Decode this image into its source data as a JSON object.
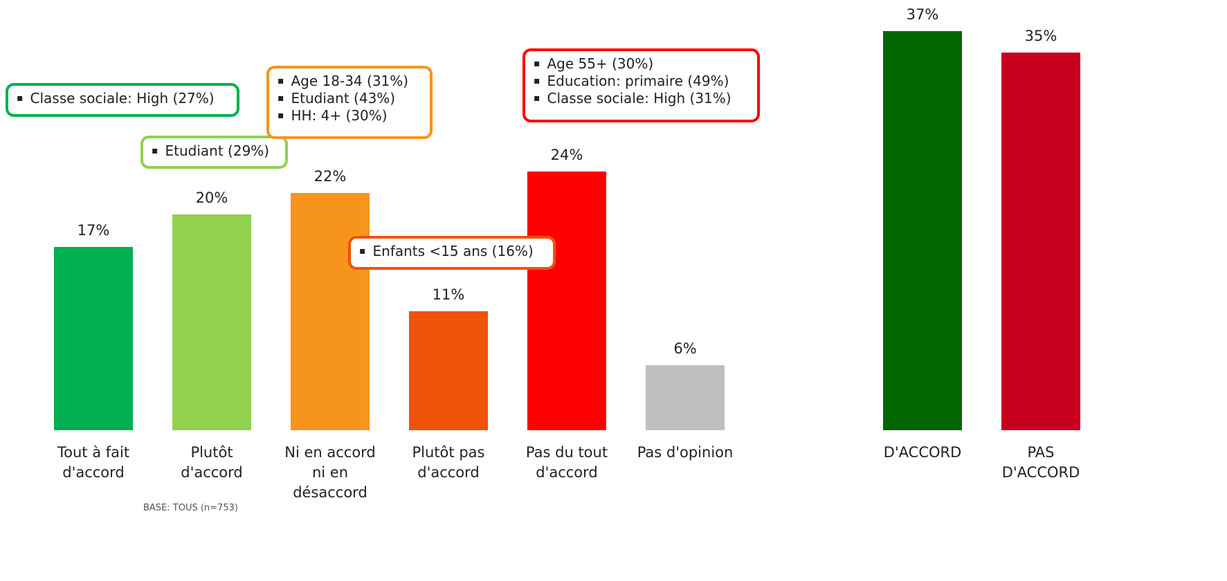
{
  "chart_data": [
    {
      "type": "bar",
      "categories": [
        "Tout à fait\nd'accord",
        "Plutôt\nd'accord",
        "Ni en accord\nni en\ndésaccord",
        "Plutôt pas\nd'accord",
        "Pas du tout\nd'accord",
        "Pas d'opinion"
      ],
      "values": [
        17,
        20,
        22,
        11,
        24,
        6
      ],
      "value_labels": [
        "17%",
        "20%",
        "22%",
        "11%",
        "24%",
        "6%"
      ],
      "colors": [
        "#00b050",
        "#92d050",
        "#f7941d",
        "#f0520a",
        "#ff0000",
        "#bfbfbf"
      ],
      "ylim": [
        0,
        37
      ],
      "annotations": [
        {
          "color": "#00b050",
          "items": [
            "Classe sociale: High (27%)"
          ]
        },
        {
          "color": "#92d050",
          "items": [
            "Etudiant (29%)"
          ]
        },
        {
          "color": "#f7941d",
          "items": [
            "Age 18-34 (31%)",
            "Etudiant (43%)",
            "HH: 4+ (30%)"
          ]
        },
        {
          "color": "#ff0000",
          "items": [
            "Age 55+ (30%)",
            "Education: primaire (49%)",
            "Classe sociale: High (31%)"
          ]
        },
        {
          "color": "#f0520a",
          "items": [
            "Enfants <15 ans (16%)"
          ]
        }
      ],
      "note": "BASE: TOUS (n=753)"
    },
    {
      "type": "bar",
      "categories": [
        "D'ACCORD",
        "PAS\nD'ACCORD"
      ],
      "values": [
        37,
        35
      ],
      "value_labels": [
        "37%",
        "35%"
      ],
      "colors": [
        "#006600",
        "#c8001e"
      ],
      "ylim": [
        0,
        37
      ]
    }
  ]
}
